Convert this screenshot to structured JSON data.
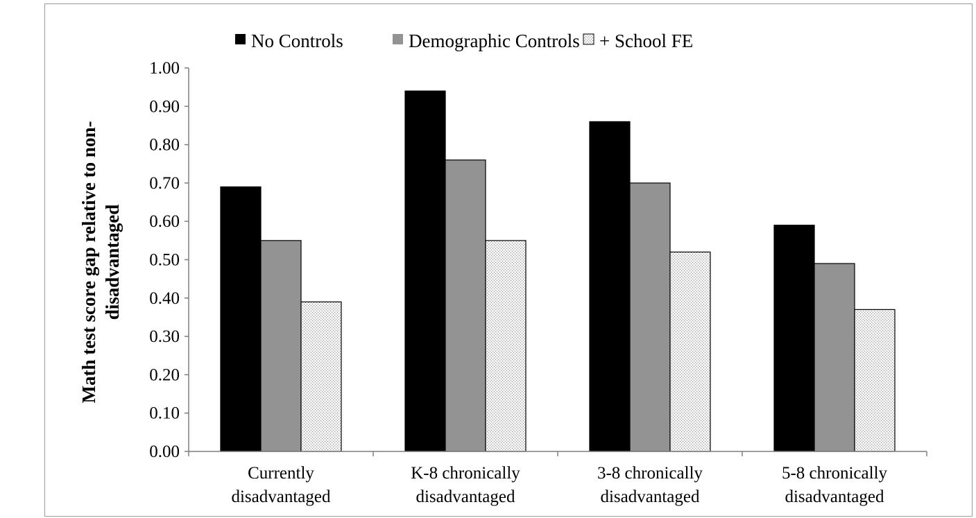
{
  "chart_data": {
    "type": "bar",
    "title": "",
    "ylabel": "Math test score gap  relative to non-disadvantaged",
    "ylabel_lines": [
      "Math test score gap  relative to non-",
      "disadvantaged"
    ],
    "xlabel": "",
    "categories": [
      "Currently disadvantaged",
      "K-8 chronically disadvantaged",
      "3-8 chronically disadvantaged",
      "5-8 chronically disadvantaged"
    ],
    "category_lines": [
      [
        "Currently",
        "disadvantaged"
      ],
      [
        "K-8 chronically",
        "disadvantaged"
      ],
      [
        "3-8 chronically",
        "disadvantaged"
      ],
      [
        "5-8 chronically",
        "disadvantaged"
      ]
    ],
    "series": [
      {
        "name": "No Controls",
        "values": [
          0.69,
          0.94,
          0.86,
          0.59
        ],
        "color": "#000000",
        "fill": "solid"
      },
      {
        "name": "Demographic Controls",
        "values": [
          0.55,
          0.76,
          0.7,
          0.49
        ],
        "color": "#939393",
        "fill": "solid"
      },
      {
        "name": "+ School FE",
        "values": [
          0.39,
          0.55,
          0.52,
          0.37
        ],
        "color": "#d9d9d9",
        "fill": "dotted"
      }
    ],
    "ylim": [
      0,
      1
    ],
    "ytick_labels": [
      "0.00",
      "0.10",
      "0.20",
      "0.30",
      "0.40",
      "0.50",
      "0.60",
      "0.70",
      "0.80",
      "0.90",
      "1.00"
    ],
    "grid": false,
    "legend_position": "top"
  }
}
